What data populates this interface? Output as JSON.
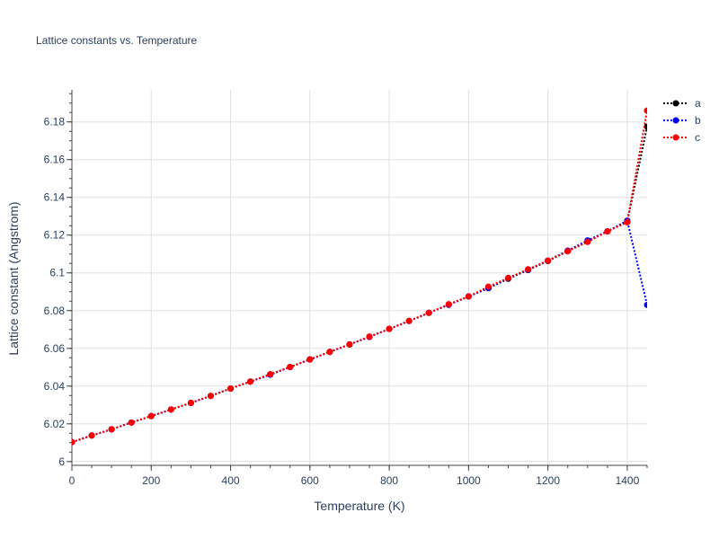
{
  "chart_data": {
    "type": "line",
    "title": "Lattice constants vs. Temperature",
    "xlabel": "Temperature (K)",
    "ylabel": "Lattice constant (Angstrom)",
    "xlim": [
      0,
      1450
    ],
    "ylim": [
      5.998,
      6.197
    ],
    "xticks": [
      0,
      200,
      400,
      600,
      800,
      1000,
      1200,
      1400
    ],
    "xtick_labels": [
      "0",
      "200",
      "400",
      "600",
      "800",
      "1000",
      "1200",
      "1400"
    ],
    "yticks": [
      6.0,
      6.02,
      6.04,
      6.06,
      6.08,
      6.1,
      6.12,
      6.14,
      6.16,
      6.18
    ],
    "ytick_labels": [
      "6",
      "6.02",
      "6.04",
      "6.06",
      "6.08",
      "6.1",
      "6.12",
      "6.14",
      "6.16",
      "6.18"
    ],
    "grid": true,
    "legend_position": "top-right",
    "x": [
      0,
      50,
      100,
      150,
      200,
      250,
      300,
      350,
      400,
      450,
      500,
      550,
      600,
      650,
      700,
      750,
      800,
      850,
      900,
      950,
      1000,
      1050,
      1100,
      1150,
      1200,
      1250,
      1300,
      1350,
      1400,
      1450
    ],
    "series": [
      {
        "name": "a",
        "color": "#000000",
        "values": [
          6.0103,
          6.0138,
          6.0171,
          6.0207,
          6.0241,
          6.0276,
          6.0311,
          6.0348,
          6.0387,
          6.0424,
          6.0462,
          6.0501,
          6.0541,
          6.0581,
          6.0621,
          6.0662,
          6.0703,
          6.0745,
          6.0788,
          6.0831,
          6.0875,
          6.0919,
          6.0969,
          6.1015,
          6.1063,
          6.1115,
          6.1165,
          6.122,
          6.1273,
          6.1775
        ]
      },
      {
        "name": "b",
        "color": "#0000ff",
        "values": [
          6.0103,
          6.0138,
          6.0171,
          6.0207,
          6.0241,
          6.0276,
          6.0311,
          6.0348,
          6.0387,
          6.0424,
          6.046,
          6.0501,
          6.0541,
          6.0581,
          6.0621,
          6.066,
          6.0703,
          6.0745,
          6.0788,
          6.0831,
          6.0875,
          6.092,
          6.0973,
          6.1016,
          6.1065,
          6.1118,
          6.1172,
          6.122,
          6.1277,
          6.083
        ]
      },
      {
        "name": "c",
        "color": "#ff0000",
        "values": [
          6.0103,
          6.0138,
          6.0171,
          6.0207,
          6.0241,
          6.0276,
          6.0311,
          6.0348,
          6.0387,
          6.0424,
          6.0463,
          6.0501,
          6.0541,
          6.0581,
          6.0621,
          6.0662,
          6.0703,
          6.0745,
          6.0788,
          6.0834,
          6.0875,
          6.0927,
          6.0973,
          6.1019,
          6.1065,
          6.1115,
          6.1164,
          6.122,
          6.1268,
          6.186
        ]
      }
    ]
  }
}
